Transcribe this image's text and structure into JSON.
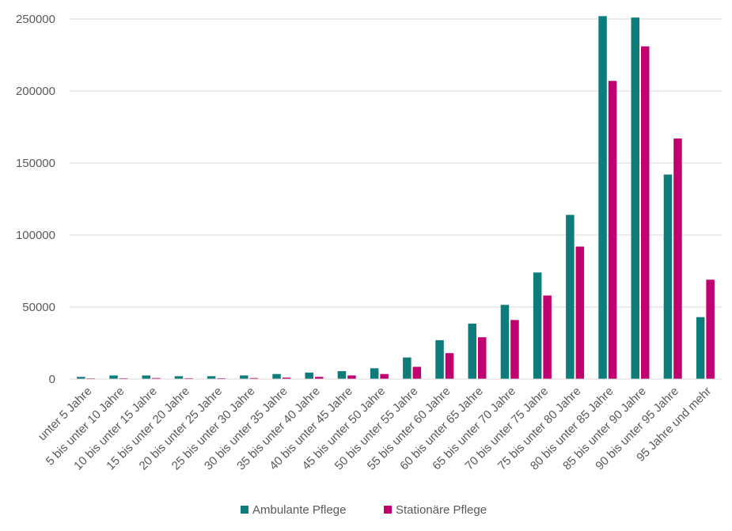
{
  "chart_data": {
    "type": "bar",
    "categories": [
      "unter 5 Jahre",
      "5 bis unter 10 Jahre",
      "10 bis unter 15 Jahre",
      "15 bis unter 20 Jahre",
      "20 bis unter 25 Jahre",
      "25 bis unter 30 Jahre",
      "30 bis unter 35 Jahre",
      "35 bis unter 40 Jahre",
      "40 bis unter 45 Jahre",
      "45 bis unter 50 Jahre",
      "50 bis unter 55 Jahre",
      "55 bis unter 60 Jahre",
      "60 bis unter 65 Jahre",
      "65 bis unter 70 Jahre",
      "70 bis unter 75 Jahre",
      "75 bis unter 80 Jahre",
      "80 bis unter 85 Jahre",
      "85 bis unter 90 Jahre",
      "90 bis unter 95 Jahre",
      "95 Jahre und mehr"
    ],
    "series": [
      {
        "name": "Ambulante Pflege",
        "color": "#0e7c7b",
        "values": [
          1500,
          2500,
          2500,
          2000,
          2000,
          2500,
          3500,
          4500,
          5500,
          7500,
          15000,
          27000,
          38500,
          51500,
          74000,
          114000,
          252000,
          251000,
          142000,
          43000
        ]
      },
      {
        "name": "Stationäre Pflege",
        "color": "#c0006e",
        "values": [
          500,
          600,
          700,
          600,
          600,
          700,
          1000,
          1500,
          2500,
          3500,
          8500,
          18000,
          29000,
          41000,
          58000,
          92000,
          207000,
          231000,
          167000,
          69000
        ]
      }
    ],
    "yticks": [
      "0",
      "50000",
      "100000",
      "150000",
      "200000",
      "250000"
    ],
    "ylim": [
      0,
      250000
    ],
    "grid": true,
    "legend_position": "bottom"
  }
}
